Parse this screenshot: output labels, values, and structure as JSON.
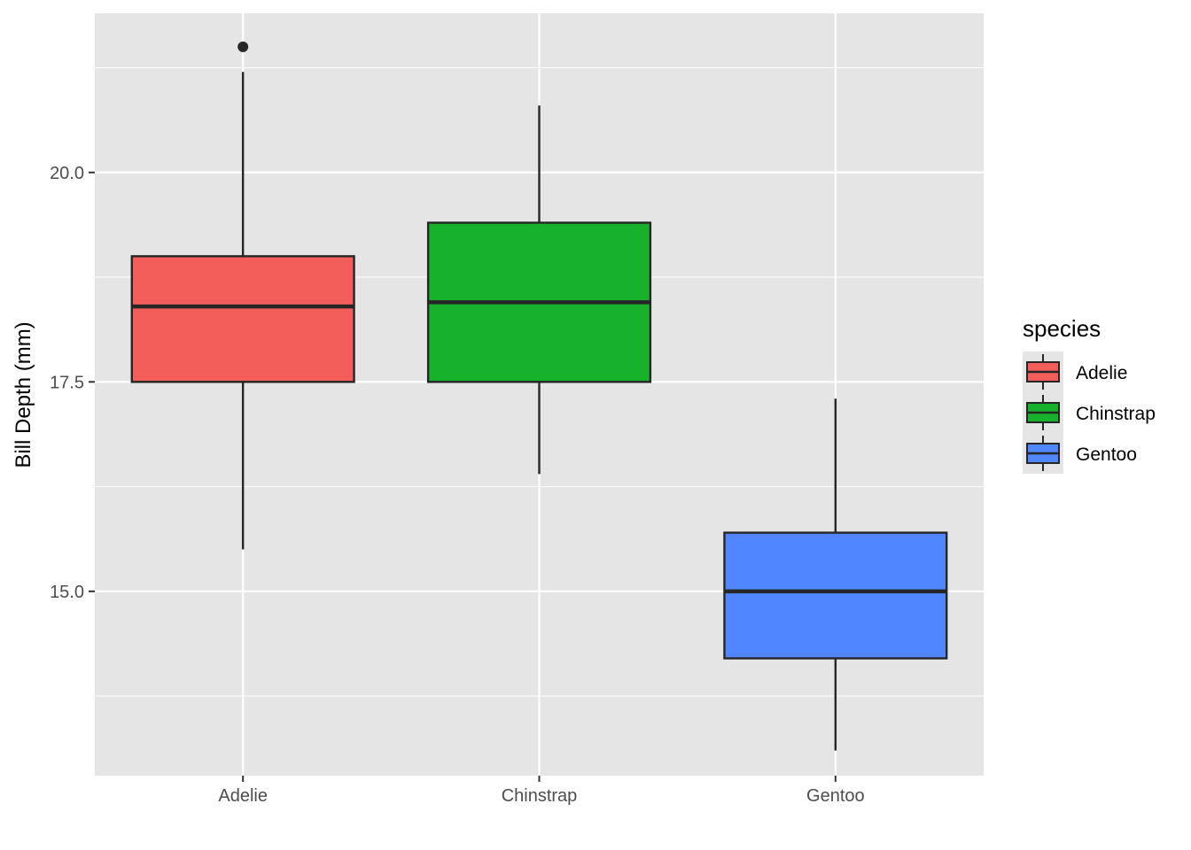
{
  "chart_data": {
    "type": "boxplot",
    "title": "",
    "xlabel": "",
    "ylabel": "Bill Depth (mm)",
    "categories": [
      "Adelie",
      "Chinstrap",
      "Gentoo"
    ],
    "ylim": [
      12.8,
      21.9
    ],
    "yticks": [
      15.0,
      17.5,
      20.0
    ],
    "ytick_labels": [
      "15.0",
      "17.5",
      "20.0"
    ],
    "grid": true,
    "boxes": [
      {
        "category": "Adelie",
        "min": 15.5,
        "q1": 17.5,
        "median": 18.4,
        "q3": 19.0,
        "max": 21.2,
        "outliers": [
          21.5
        ],
        "fill": "#F35E5A"
      },
      {
        "category": "Chinstrap",
        "min": 16.4,
        "q1": 17.5,
        "median": 18.45,
        "q3": 19.4,
        "max": 20.8,
        "outliers": [],
        "fill": "#17B12B"
      },
      {
        "category": "Gentoo",
        "min": 13.1,
        "q1": 14.2,
        "median": 15.0,
        "q3": 15.7,
        "max": 17.3,
        "outliers": [],
        "fill": "#5086FF"
      }
    ],
    "legend": {
      "title": "species",
      "position": "right",
      "entries": [
        {
          "label": "Adelie",
          "color": "#F35E5A"
        },
        {
          "label": "Chinstrap",
          "color": "#17B12B"
        },
        {
          "label": "Gentoo",
          "color": "#5086FF"
        }
      ]
    },
    "colors": {
      "panel_bg": "#E5E5E5",
      "grid": "#FFFFFF",
      "outline": "#262626"
    }
  }
}
